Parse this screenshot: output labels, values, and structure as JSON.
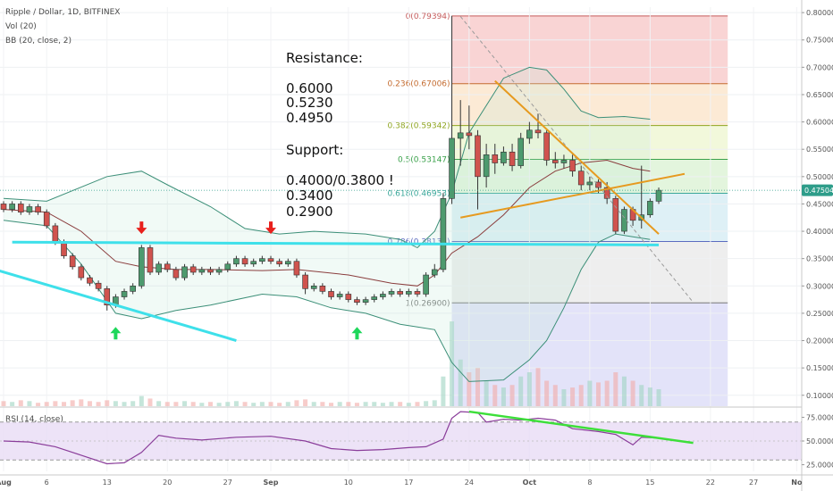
{
  "header": {
    "symbol_line": "Ripple / Dollar, 1D, BITFINEX",
    "vol_line": "Vol (20)",
    "bb_line": "BB (20, close, 2)",
    "rsi_line": "RSI (14, close)"
  },
  "notes": {
    "resistance_title": "Resistance:",
    "resistance_levels": [
      "0.6000",
      "0.5230",
      "0.4950"
    ],
    "support_title": "Support:",
    "support_levels": [
      "0.4000/0.3800 !",
      "0.3400",
      "0.2900"
    ]
  },
  "price_badge": "0.47504",
  "colors": {
    "up": "#4d9a6e",
    "down": "#d0534e",
    "bb": "#3c8f78",
    "sma": "#8a3d3d",
    "cyan": "#3ee0ea",
    "orange": "#e69a1f",
    "green_arrow": "#1ed75a",
    "red_arrow": "#e8201c",
    "rsi_line": "#8a3d9a",
    "rsi_trend": "#3ddf3a",
    "badge": "#2e9d8a"
  },
  "chart_data": {
    "type": "candlestick",
    "title": "Ripple / Dollar, 1D, BITFINEX",
    "price_axis": {
      "ticks": [
        "0.80000",
        "0.75000",
        "0.70000",
        "0.65000",
        "0.60000",
        "0.55000",
        "0.50000",
        "0.45000",
        "0.40000",
        "0.35000",
        "0.30000",
        "0.25000",
        "0.20000",
        "0.15000",
        "0.10000"
      ],
      "range": [
        0.08,
        0.81
      ]
    },
    "rsi_axis": {
      "ticks": [
        "75.0000",
        "50.0000",
        "25.0000"
      ],
      "range": [
        18,
        82
      ],
      "bands": [
        70,
        30
      ]
    },
    "x_axis": {
      "ticks": [
        {
          "label": "Aug",
          "day": 0
        },
        {
          "label": "6",
          "day": 5
        },
        {
          "label": "13",
          "day": 12
        },
        {
          "label": "20",
          "day": 19
        },
        {
          "label": "27",
          "day": 26
        },
        {
          "label": "Sep",
          "day": 31
        },
        {
          "label": "10",
          "day": 40
        },
        {
          "label": "17",
          "day": 47
        },
        {
          "label": "24",
          "day": 54
        },
        {
          "label": "Oct",
          "day": 61
        },
        {
          "label": "8",
          "day": 68
        },
        {
          "label": "15",
          "day": 75
        },
        {
          "label": "22",
          "day": 82
        },
        {
          "label": "27",
          "day": 87
        },
        {
          "label": "No",
          "day": 92
        }
      ],
      "range": [
        0,
        93
      ]
    },
    "candles": [
      [
        0.44,
        0.45,
        0.435,
        0.455
      ],
      [
        0.45,
        0.44,
        0.435,
        0.455
      ],
      [
        0.44,
        0.45,
        0.435,
        0.455
      ],
      [
        0.45,
        0.435,
        0.43,
        0.455
      ],
      [
        0.435,
        0.445,
        0.43,
        0.45
      ],
      [
        0.445,
        0.435,
        0.43,
        0.45
      ],
      [
        0.435,
        0.41,
        0.405,
        0.44
      ],
      [
        0.41,
        0.38,
        0.375,
        0.415
      ],
      [
        0.38,
        0.355,
        0.35,
        0.385
      ],
      [
        0.355,
        0.335,
        0.33,
        0.36
      ],
      [
        0.335,
        0.315,
        0.31,
        0.34
      ],
      [
        0.315,
        0.305,
        0.3,
        0.32
      ],
      [
        0.305,
        0.295,
        0.29,
        0.31
      ],
      [
        0.295,
        0.265,
        0.255,
        0.3
      ],
      [
        0.265,
        0.28,
        0.26,
        0.285
      ],
      [
        0.28,
        0.29,
        0.275,
        0.295
      ],
      [
        0.29,
        0.3,
        0.285,
        0.305
      ],
      [
        0.3,
        0.37,
        0.295,
        0.375
      ],
      [
        0.37,
        0.325,
        0.32,
        0.375
      ],
      [
        0.325,
        0.34,
        0.32,
        0.345
      ],
      [
        0.34,
        0.33,
        0.325,
        0.345
      ],
      [
        0.33,
        0.315,
        0.31,
        0.335
      ],
      [
        0.315,
        0.335,
        0.31,
        0.34
      ],
      [
        0.335,
        0.325,
        0.32,
        0.34
      ],
      [
        0.325,
        0.33,
        0.32,
        0.335
      ],
      [
        0.33,
        0.325,
        0.32,
        0.335
      ],
      [
        0.325,
        0.33,
        0.32,
        0.335
      ],
      [
        0.33,
        0.34,
        0.325,
        0.345
      ],
      [
        0.34,
        0.35,
        0.335,
        0.355
      ],
      [
        0.35,
        0.34,
        0.335,
        0.355
      ],
      [
        0.34,
        0.345,
        0.335,
        0.35
      ],
      [
        0.345,
        0.35,
        0.34,
        0.355
      ],
      [
        0.35,
        0.345,
        0.34,
        0.355
      ],
      [
        0.345,
        0.34,
        0.335,
        0.35
      ],
      [
        0.34,
        0.345,
        0.335,
        0.35
      ],
      [
        0.345,
        0.32,
        0.315,
        0.35
      ],
      [
        0.32,
        0.295,
        0.285,
        0.325
      ],
      [
        0.295,
        0.3,
        0.29,
        0.305
      ],
      [
        0.3,
        0.29,
        0.285,
        0.305
      ],
      [
        0.29,
        0.28,
        0.275,
        0.295
      ],
      [
        0.28,
        0.285,
        0.275,
        0.29
      ],
      [
        0.285,
        0.275,
        0.27,
        0.29
      ],
      [
        0.275,
        0.27,
        0.265,
        0.28
      ],
      [
        0.27,
        0.275,
        0.265,
        0.28
      ],
      [
        0.275,
        0.28,
        0.27,
        0.285
      ],
      [
        0.28,
        0.285,
        0.275,
        0.29
      ],
      [
        0.285,
        0.29,
        0.28,
        0.295
      ],
      [
        0.29,
        0.285,
        0.28,
        0.295
      ],
      [
        0.285,
        0.29,
        0.28,
        0.295
      ],
      [
        0.29,
        0.285,
        0.28,
        0.295
      ],
      [
        0.285,
        0.32,
        0.28,
        0.325
      ],
      [
        0.32,
        0.33,
        0.315,
        0.34
      ],
      [
        0.33,
        0.46,
        0.325,
        0.47
      ],
      [
        0.46,
        0.57,
        0.45,
        0.794
      ],
      [
        0.57,
        0.58,
        0.52,
        0.64
      ],
      [
        0.58,
        0.575,
        0.55,
        0.63
      ],
      [
        0.575,
        0.5,
        0.44,
        0.585
      ],
      [
        0.5,
        0.54,
        0.48,
        0.56
      ],
      [
        0.54,
        0.525,
        0.505,
        0.56
      ],
      [
        0.525,
        0.545,
        0.52,
        0.555
      ],
      [
        0.545,
        0.52,
        0.51,
        0.56
      ],
      [
        0.52,
        0.57,
        0.515,
        0.58
      ],
      [
        0.57,
        0.585,
        0.56,
        0.6
      ],
      [
        0.585,
        0.58,
        0.57,
        0.615
      ],
      [
        0.58,
        0.53,
        0.52,
        0.585
      ],
      [
        0.53,
        0.525,
        0.515,
        0.545
      ],
      [
        0.525,
        0.53,
        0.515,
        0.54
      ],
      [
        0.53,
        0.51,
        0.5,
        0.54
      ],
      [
        0.51,
        0.485,
        0.475,
        0.52
      ],
      [
        0.485,
        0.49,
        0.475,
        0.5
      ],
      [
        0.49,
        0.48,
        0.47,
        0.495
      ],
      [
        0.48,
        0.46,
        0.45,
        0.49
      ],
      [
        0.46,
        0.4,
        0.395,
        0.465
      ],
      [
        0.4,
        0.44,
        0.395,
        0.445
      ],
      [
        0.44,
        0.42,
        0.41,
        0.445
      ],
      [
        0.42,
        0.43,
        0.405,
        0.52
      ],
      [
        0.43,
        0.455,
        0.425,
        0.46
      ],
      [
        0.455,
        0.475,
        0.45,
        0.48
      ]
    ],
    "candle_start_day": -1,
    "bollinger": {
      "upper": [
        [
          0,
          0.46
        ],
        [
          5,
          0.455
        ],
        [
          12,
          0.5
        ],
        [
          16,
          0.51
        ],
        [
          19,
          0.485
        ],
        [
          24,
          0.445
        ],
        [
          28,
          0.405
        ],
        [
          32,
          0.395
        ],
        [
          36,
          0.4
        ],
        [
          42,
          0.395
        ],
        [
          46,
          0.385
        ],
        [
          48,
          0.37
        ],
        [
          50,
          0.4
        ],
        [
          52,
          0.47
        ],
        [
          54,
          0.58
        ],
        [
          58,
          0.68
        ],
        [
          61,
          0.7
        ],
        [
          63,
          0.695
        ],
        [
          65,
          0.66
        ],
        [
          67,
          0.62
        ],
        [
          69,
          0.608
        ],
        [
          72,
          0.61
        ],
        [
          75,
          0.605
        ]
      ],
      "middle": [
        [
          0,
          0.44
        ],
        [
          5,
          0.435
        ],
        [
          9,
          0.4
        ],
        [
          13,
          0.345
        ],
        [
          16,
          0.335
        ],
        [
          20,
          0.33
        ],
        [
          24,
          0.33
        ],
        [
          30,
          0.328
        ],
        [
          34,
          0.33
        ],
        [
          40,
          0.32
        ],
        [
          45,
          0.305
        ],
        [
          48,
          0.3
        ],
        [
          50,
          0.32
        ],
        [
          52,
          0.36
        ],
        [
          55,
          0.39
        ],
        [
          58,
          0.43
        ],
        [
          61,
          0.48
        ],
        [
          64,
          0.51
        ],
        [
          67,
          0.525
        ],
        [
          70,
          0.53
        ],
        [
          73,
          0.515
        ],
        [
          75,
          0.51
        ]
      ],
      "lower": [
        [
          0,
          0.42
        ],
        [
          5,
          0.41
        ],
        [
          9,
          0.34
        ],
        [
          13,
          0.25
        ],
        [
          16,
          0.24
        ],
        [
          20,
          0.255
        ],
        [
          24,
          0.265
        ],
        [
          30,
          0.285
        ],
        [
          34,
          0.28
        ],
        [
          38,
          0.26
        ],
        [
          42,
          0.25
        ],
        [
          46,
          0.23
        ],
        [
          48,
          0.225
        ],
        [
          50,
          0.22
        ],
        [
          52,
          0.16
        ],
        [
          54,
          0.125
        ],
        [
          58,
          0.128
        ],
        [
          61,
          0.165
        ],
        [
          63,
          0.2
        ],
        [
          65,
          0.26
        ],
        [
          67,
          0.33
        ],
        [
          69,
          0.38
        ],
        [
          71,
          0.395
        ],
        [
          73,
          0.39
        ],
        [
          75,
          0.385
        ]
      ]
    },
    "fibonacci": {
      "levels": [
        {
          "label": "0(0.79394)",
          "value": 0.79394,
          "fill": "#f7c6c6"
        },
        {
          "label": "0.236(0.67006)",
          "value": 0.67006,
          "fill": "#fbe3c7"
        },
        {
          "label": "0.382(0.59342)",
          "value": 0.59342,
          "fill": "#eef5cf"
        },
        {
          "label": "0.5(0.53147)",
          "value": 0.53147,
          "fill": "#d9f2d2"
        },
        {
          "label": "0.618(0.46953)",
          "value": 0.46953,
          "fill": "#d3ebf3"
        },
        {
          "label": "0.786(0.38134)",
          "value": 0.38134,
          "fill": "#e8e8e8"
        },
        {
          "label": "1(0.26900)",
          "value": 0.269,
          "fill": "#d9d9f7"
        }
      ],
      "colors": [
        "#c55b5b",
        "#c46b2f",
        "#8fa520",
        "#3aa14a",
        "#3aa79a",
        "#5a6bc0",
        "#777777"
      ],
      "x_range": [
        52,
        84
      ]
    },
    "volume": [
      0.05,
      0.06,
      0.05,
      0.07,
      0.06,
      0.04,
      0.05,
      0.06,
      0.05,
      0.07,
      0.08,
      0.06,
      0.05,
      0.07,
      0.06,
      0.05,
      0.06,
      0.12,
      0.09,
      0.06,
      0.05,
      0.05,
      0.06,
      0.05,
      0.04,
      0.05,
      0.04,
      0.05,
      0.06,
      0.05,
      0.04,
      0.05,
      0.05,
      0.04,
      0.05,
      0.07,
      0.08,
      0.05,
      0.05,
      0.04,
      0.05,
      0.05,
      0.04,
      0.05,
      0.05,
      0.04,
      0.05,
      0.05,
      0.04,
      0.05,
      0.06,
      0.07,
      0.35,
      1.0,
      0.55,
      0.4,
      0.45,
      0.3,
      0.25,
      0.22,
      0.25,
      0.35,
      0.4,
      0.45,
      0.3,
      0.25,
      0.2,
      0.22,
      0.25,
      0.3,
      0.28,
      0.3,
      0.4,
      0.35,
      0.3,
      0.25,
      0.22,
      0.2
    ],
    "rsi": [
      [
        0,
        50
      ],
      [
        3,
        49
      ],
      [
        6,
        44
      ],
      [
        9,
        35
      ],
      [
        12,
        26
      ],
      [
        14,
        27
      ],
      [
        16,
        38
      ],
      [
        18,
        56
      ],
      [
        20,
        53
      ],
      [
        23,
        51
      ],
      [
        27,
        54
      ],
      [
        31,
        55
      ],
      [
        35,
        50
      ],
      [
        38,
        42
      ],
      [
        41,
        40
      ],
      [
        44,
        41
      ],
      [
        47,
        43
      ],
      [
        49,
        44
      ],
      [
        51,
        52
      ],
      [
        52,
        74
      ],
      [
        53,
        81
      ],
      [
        55,
        80
      ],
      [
        56,
        70
      ],
      [
        58,
        73
      ],
      [
        60,
        72
      ],
      [
        62,
        74
      ],
      [
        64,
        72
      ],
      [
        66,
        63
      ],
      [
        69,
        60
      ],
      [
        71,
        57
      ],
      [
        73,
        46
      ],
      [
        74,
        54
      ],
      [
        76,
        53
      ]
    ],
    "annotations": {
      "cyan_resistance": [
        [
          1,
          0.38
        ],
        [
          76,
          0.375
        ]
      ],
      "cyan_channel": [
        [
          -1,
          0.33
        ],
        [
          27,
          0.2
        ]
      ],
      "orange_down": [
        [
          57,
          0.675
        ],
        [
          76,
          0.395
        ]
      ],
      "orange_up": [
        [
          53,
          0.425
        ],
        [
          79,
          0.505
        ]
      ],
      "dash_diagonal": [
        [
          53,
          0.793
        ],
        [
          80,
          0.27
        ]
      ],
      "red_arrows": [
        [
          16,
          0.395
        ],
        [
          31,
          0.395
        ]
      ],
      "green_arrows": [
        [
          13,
          0.225
        ],
        [
          41,
          0.225
        ]
      ],
      "rsi_trend": [
        [
          54,
          81
        ],
        [
          80,
          48
        ]
      ]
    }
  }
}
